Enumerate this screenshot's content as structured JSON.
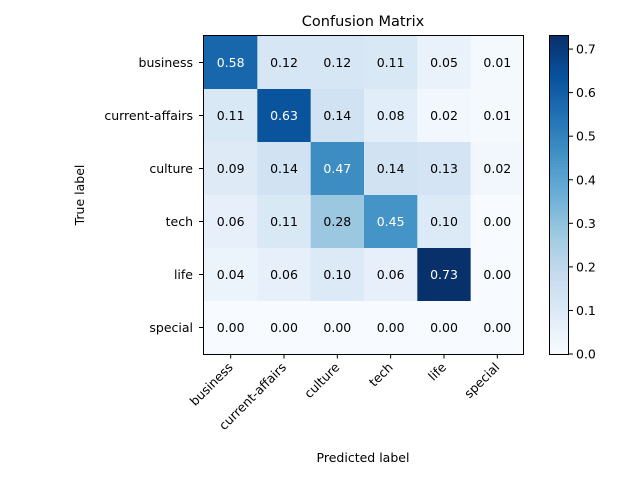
{
  "chart_data": {
    "type": "heatmap",
    "title": "Confusion Matrix",
    "xlabel": "Predicted label",
    "ylabel": "True label",
    "row_labels": [
      "business",
      "current-affairs",
      "culture",
      "tech",
      "life",
      "special"
    ],
    "col_labels": [
      "business",
      "current-affairs",
      "culture",
      "tech",
      "life",
      "special"
    ],
    "values": [
      [
        0.58,
        0.12,
        0.12,
        0.11,
        0.05,
        0.01
      ],
      [
        0.11,
        0.63,
        0.14,
        0.08,
        0.02,
        0.01
      ],
      [
        0.09,
        0.14,
        0.47,
        0.14,
        0.13,
        0.02
      ],
      [
        0.06,
        0.11,
        0.28,
        0.45,
        0.1,
        0.0
      ],
      [
        0.04,
        0.06,
        0.1,
        0.06,
        0.73,
        0.0
      ],
      [
        0.0,
        0.0,
        0.0,
        0.0,
        0.0,
        0.0
      ]
    ],
    "value_labels": [
      [
        "0.58",
        "0.12",
        "0.12",
        "0.11",
        "0.05",
        "0.01"
      ],
      [
        "0.11",
        "0.63",
        "0.14",
        "0.08",
        "0.02",
        "0.01"
      ],
      [
        "0.09",
        "0.14",
        "0.47",
        "0.14",
        "0.13",
        "0.02"
      ],
      [
        "0.06",
        "0.11",
        "0.28",
        "0.45",
        "0.10",
        "0.00"
      ],
      [
        "0.04",
        "0.06",
        "0.10",
        "0.06",
        "0.73",
        "0.00"
      ],
      [
        "0.00",
        "0.00",
        "0.00",
        "0.00",
        "0.00",
        "0.00"
      ]
    ],
    "colormap": "Blues",
    "color_range": [
      0,
      0.73
    ],
    "colorbar_ticks": [
      0.0,
      0.1,
      0.2,
      0.3,
      0.4,
      0.5,
      0.6,
      0.7
    ],
    "colorbar_tick_labels": [
      "0.0",
      "0.1",
      "0.2",
      "0.3",
      "0.4",
      "0.5",
      "0.6",
      "0.7"
    ],
    "grid": false,
    "legend": "colorbar-right"
  }
}
